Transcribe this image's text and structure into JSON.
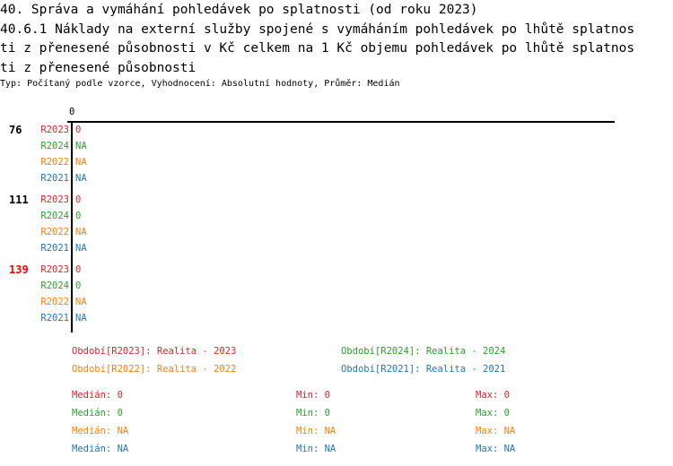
{
  "title_lines": [
    "40. Správa a vymáhání pohledávek po splatnosti (od roku 2023)",
    "40.6.1 Náklady na externí služby spojené s vymáháním pohledávek po lhůtě splatnos",
    "ti z přenesené působnosti v Kč celkem na 1 Kč objemu pohledávek po lhůtě splatnos",
    "ti z přenesené působnosti"
  ],
  "subtitle": "Typ: Počítaný podle vzorce, Vyhodnocení: Absolutní hodnoty, Průměr: Medián",
  "colors": {
    "R2023": "#d62728",
    "R2024": "#2ca02c",
    "R2022": "#ff7f0e",
    "R2021": "#1f77b4",
    "highlight": "#ff0000",
    "text": "#000000"
  },
  "chart_data": {
    "type": "bar",
    "orientation": "horizontal",
    "x_ticks": [
      "0"
    ],
    "groups": [
      {
        "label": "76",
        "highlight": false,
        "series": [
          {
            "name": "R2023",
            "value": "0"
          },
          {
            "name": "R2024",
            "value": "NA"
          },
          {
            "name": "R2022",
            "value": "NA"
          },
          {
            "name": "R2021",
            "value": "NA"
          }
        ]
      },
      {
        "label": "111",
        "highlight": false,
        "series": [
          {
            "name": "R2023",
            "value": "0"
          },
          {
            "name": "R2024",
            "value": "0"
          },
          {
            "name": "R2022",
            "value": "NA"
          },
          {
            "name": "R2021",
            "value": "NA"
          }
        ]
      },
      {
        "label": "139",
        "highlight": true,
        "series": [
          {
            "name": "R2023",
            "value": "0"
          },
          {
            "name": "R2024",
            "value": "0"
          },
          {
            "name": "R2022",
            "value": "NA"
          },
          {
            "name": "R2021",
            "value": "NA"
          }
        ]
      }
    ],
    "legend": [
      {
        "series": "R2023",
        "text": "Období[R2023]: Realita - 2023"
      },
      {
        "series": "R2024",
        "text": "Období[R2024]: Realita - 2024"
      },
      {
        "series": "R2022",
        "text": "Období[R2022]: Realita - 2022"
      },
      {
        "series": "R2021",
        "text": "Období[R2021]: Realita - 2021"
      }
    ],
    "stats": [
      {
        "series": "R2023",
        "median": "Medián: 0",
        "min": "Min: 0",
        "max": "Max: 0"
      },
      {
        "series": "R2024",
        "median": "Medián: 0",
        "min": "Min: 0",
        "max": "Max: 0"
      },
      {
        "series": "R2022",
        "median": "Medián: NA",
        "min": "Min: NA",
        "max": "Max: NA"
      },
      {
        "series": "R2021",
        "median": "Medián: NA",
        "min": "Min: NA",
        "max": "Max: NA"
      }
    ]
  }
}
